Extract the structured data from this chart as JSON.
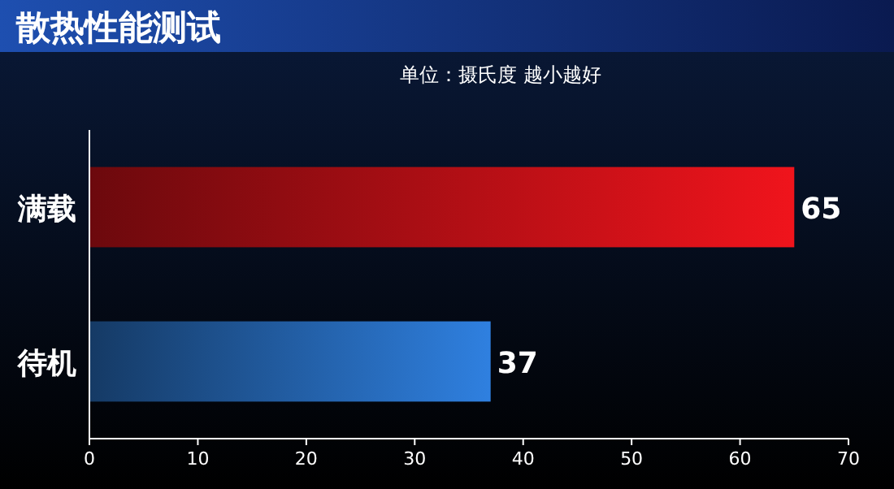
{
  "chart_data": {
    "type": "bar",
    "orientation": "horizontal",
    "title": "散热性能测试",
    "subtitle": "单位：摄氏度 越小越好",
    "categories": [
      "满载",
      "待机"
    ],
    "values": [
      65,
      37
    ],
    "colors": [
      "#f0141c",
      "#2f80e0"
    ],
    "xlim": [
      0,
      70
    ],
    "xticks": [
      0,
      10,
      20,
      30,
      40,
      50,
      60,
      70
    ],
    "data_labels": true
  }
}
